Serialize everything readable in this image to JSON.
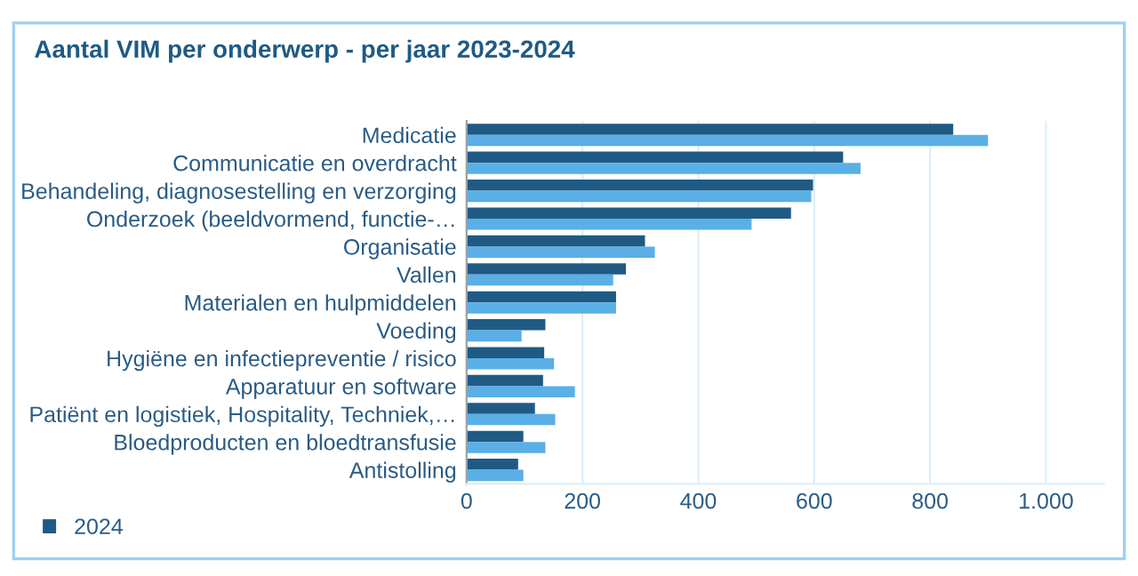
{
  "chart_data": {
    "type": "bar",
    "orientation": "horizontal",
    "title": "Aantal VIM per onderwerp - per jaar 2023-2024",
    "categories": [
      "Medicatie",
      "Communicatie en overdracht",
      "Behandeling, diagnosestelling en verzorging",
      "Onderzoek (beeldvormend, functie-…",
      "Organisatie",
      "Vallen",
      "Materialen en hulpmiddelen",
      "Voeding",
      "Hygiëne en infectiepreventie / risico",
      "Apparatuur en software",
      "Patiënt en logistiek, Hospitality, Techniek,…",
      "Bloedproducten en bloedtransfusie",
      "Antistolling"
    ],
    "series": [
      {
        "name": "2024",
        "color": "#1f5a85",
        "values": [
          840,
          650,
          598,
          560,
          308,
          275,
          258,
          136,
          134,
          132,
          118,
          98,
          89
        ]
      },
      {
        "color": "#5aafe6",
        "values": [
          900,
          680,
          595,
          492,
          325,
          253,
          258,
          95,
          151,
          187,
          153,
          136,
          98
        ]
      }
    ],
    "xlim": [
      0,
      1100
    ],
    "xticks": [
      0,
      200,
      400,
      600,
      800,
      {
        "value": 1000,
        "label": "1.000"
      }
    ],
    "grid": "x",
    "legend": "bottom left"
  }
}
